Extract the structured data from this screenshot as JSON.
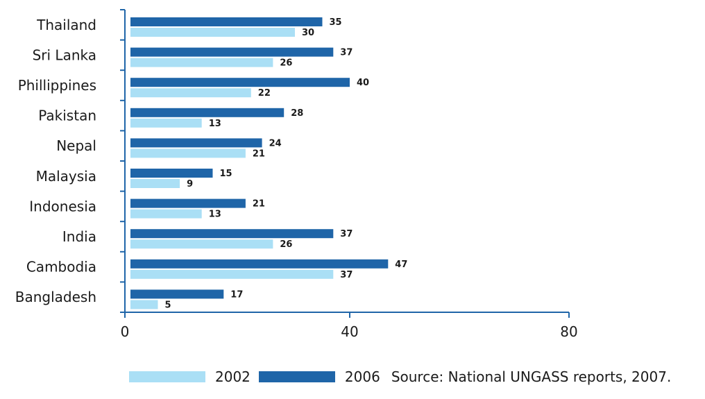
{
  "chart_data": {
    "type": "bar",
    "orientation": "horizontal",
    "categories": [
      "Thailand",
      "Sri Lanka",
      "Phillippines",
      "Pakistan",
      "Nepal",
      "Malaysia",
      "Indonesia",
      "India",
      "Cambodia",
      "Bangladesh"
    ],
    "series": [
      {
        "name": "2006",
        "color": "#1f65a8",
        "values": [
          35,
          37,
          40,
          28,
          24,
          15,
          21,
          37,
          47,
          17
        ]
      },
      {
        "name": "2002",
        "color": "#aadff5",
        "values": [
          30,
          26,
          22,
          13,
          21,
          9,
          13,
          26,
          37,
          5
        ]
      }
    ],
    "xlim": [
      0,
      80
    ],
    "xticks": [
      0,
      40,
      80
    ],
    "grid": false,
    "legend_position": "bottom",
    "source": "Source: National UNGASS reports, 2007."
  }
}
